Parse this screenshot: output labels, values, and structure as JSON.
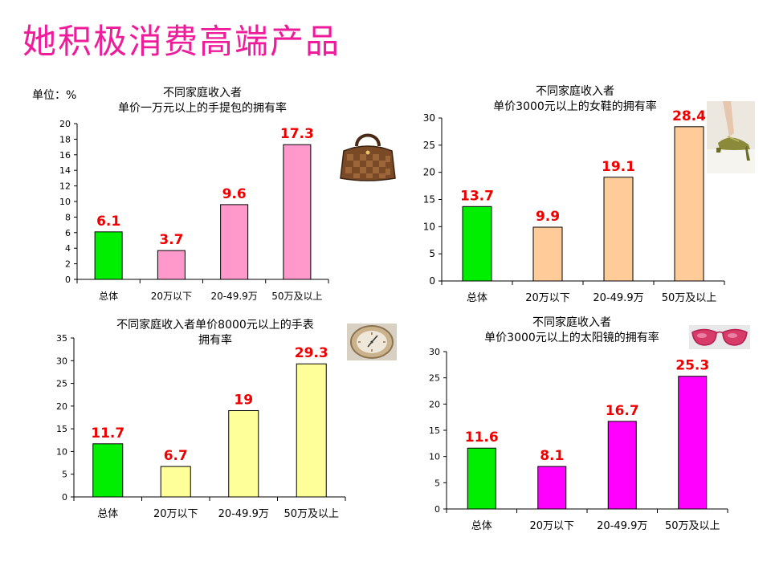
{
  "page": {
    "title": "她积极消费高端产品",
    "unit_label": "单位：%"
  },
  "colors": {
    "title": "#ee1c9a",
    "value_label": "#ee0000",
    "total_bar": "#00ee00",
    "handbag": "#ff99cc",
    "shoes": "#ffcc99",
    "watch": "#ffff99",
    "sunglasses": "#ff00ff"
  },
  "chart_data": [
    {
      "type": "bar",
      "title": "不同家庭收入者\n单价一万元以上的手提包的拥有率",
      "categories": [
        "总体",
        "20万以下",
        "20-49.9万",
        "50万及以上"
      ],
      "values": [
        6.1,
        3.7,
        9.6,
        17.3
      ],
      "value_labels": [
        "6.1",
        "3.7",
        "9.6",
        "17.3"
      ],
      "ylim": [
        0,
        20
      ],
      "yticks": [
        0,
        2,
        4,
        6,
        8,
        10,
        12,
        14,
        16,
        18,
        20
      ],
      "bar_colors": [
        "#00ee00",
        "#ff99cc",
        "#ff99cc",
        "#ff99cc"
      ],
      "grid": false,
      "photo": "handbag-photo"
    },
    {
      "type": "bar",
      "title": "不同家庭收入者\n单价3000元以上的女鞋的拥有率",
      "categories": [
        "总体",
        "20万以下",
        "20-49.9万",
        "50万及以上"
      ],
      "values": [
        13.7,
        9.9,
        19.1,
        28.4
      ],
      "value_labels": [
        "13.7",
        "9.9",
        "19.1",
        "28.4"
      ],
      "ylim": [
        0,
        30
      ],
      "yticks": [
        0,
        5,
        10,
        15,
        20,
        25,
        30
      ],
      "bar_colors": [
        "#00ee00",
        "#ffcc99",
        "#ffcc99",
        "#ffcc99"
      ],
      "grid": false,
      "photo": "shoe-photo"
    },
    {
      "type": "bar",
      "title": "不同家庭收入者单价8000元以上的手表\n拥有率",
      "categories": [
        "总体",
        "20万以下",
        "20-49.9万",
        "50万及以上"
      ],
      "values": [
        11.7,
        6.7,
        19,
        29.3
      ],
      "value_labels": [
        "11.7",
        "6.7",
        "19",
        "29.3"
      ],
      "ylim": [
        0,
        35
      ],
      "yticks": [
        0,
        5,
        10,
        15,
        20,
        25,
        30,
        35
      ],
      "bar_colors": [
        "#00ee00",
        "#ffff99",
        "#ffff99",
        "#ffff99"
      ],
      "grid": false,
      "photo": "watch-photo"
    },
    {
      "type": "bar",
      "title": "不同家庭收入者\n单价3000元以上的太阳镜的拥有率",
      "categories": [
        "总体",
        "20万以下",
        "20-49.9万",
        "50万及以上"
      ],
      "values": [
        11.6,
        8.1,
        16.7,
        25.3
      ],
      "value_labels": [
        "11.6",
        "8.1",
        "16.7",
        "25.3"
      ],
      "ylim": [
        0,
        30
      ],
      "yticks": [
        0,
        5,
        10,
        15,
        20,
        25,
        30
      ],
      "bar_colors": [
        "#00ee00",
        "#ff00ff",
        "#ff00ff",
        "#ff00ff"
      ],
      "grid": false,
      "photo": "sunglasses-photo"
    }
  ]
}
